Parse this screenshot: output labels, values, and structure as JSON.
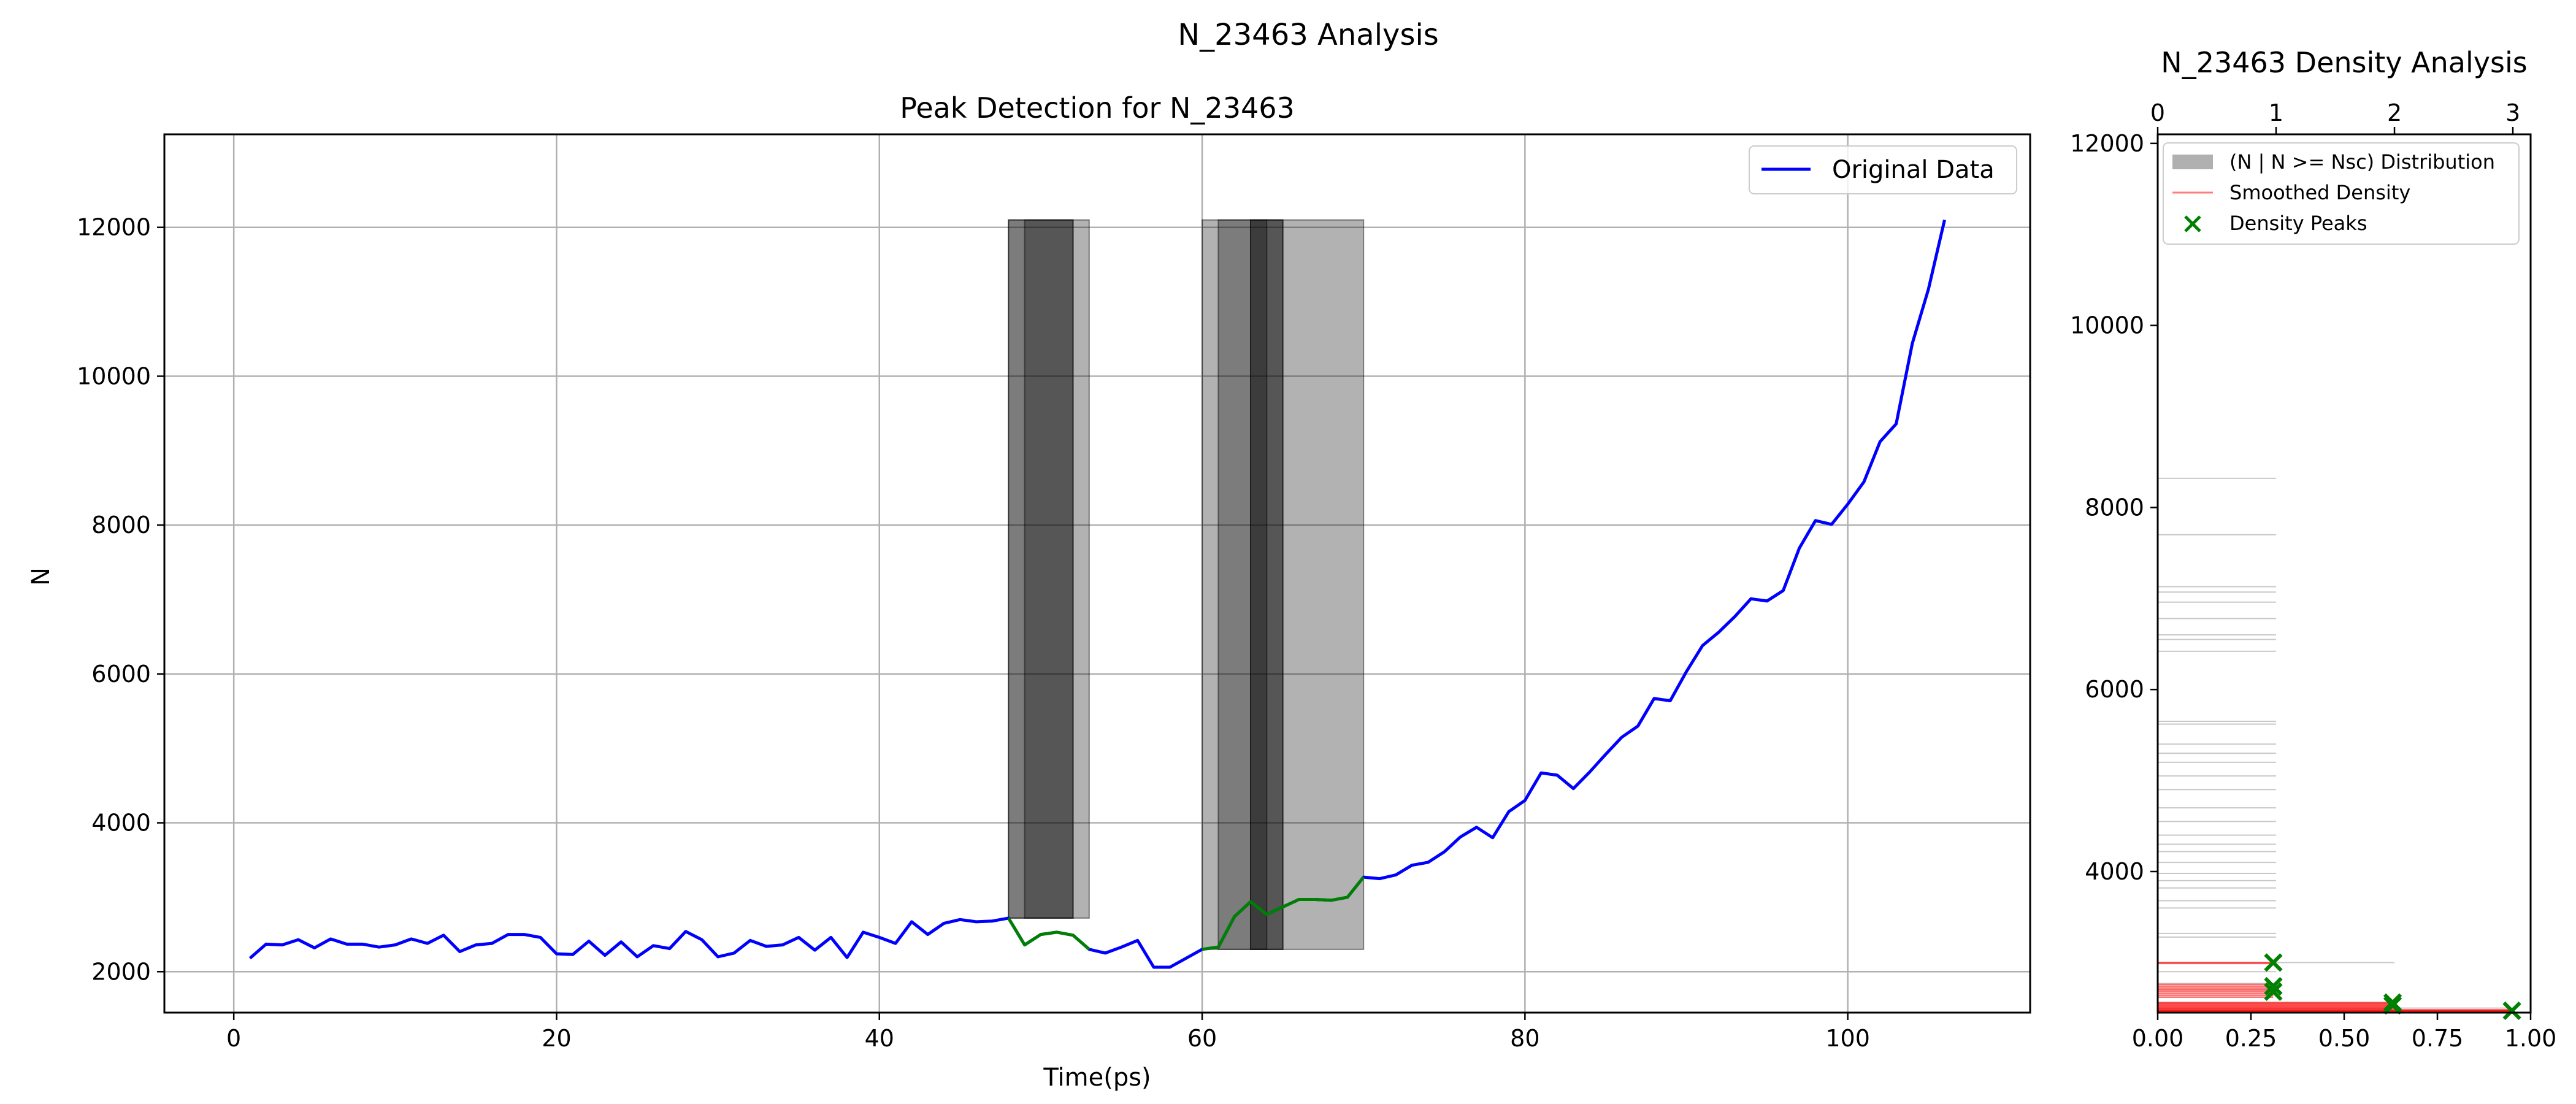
{
  "figure": {
    "suptitle": "N_23463 Analysis"
  },
  "chart_data": [
    {
      "type": "line",
      "title": "Peak Detection for N_23463",
      "xlabel": "Time(ps)",
      "ylabel": "N",
      "xlim": [
        -4.3,
        111.3
      ],
      "ylim": [
        1450,
        13250
      ],
      "xticks": [
        0,
        20,
        40,
        60,
        80,
        100
      ],
      "yticks": [
        2000,
        4000,
        6000,
        8000,
        10000,
        12000
      ],
      "grid": true,
      "legend": {
        "position": "top-right",
        "entries": [
          "Original Data"
        ]
      },
      "series": [
        {
          "name": "Original Data",
          "color": "#0000ff",
          "x": [
            1,
            2,
            3,
            4,
            5,
            6,
            7,
            8,
            9,
            10,
            11,
            12,
            13,
            14,
            15,
            16,
            17,
            18,
            19,
            20,
            21,
            22,
            23,
            24,
            25,
            26,
            27,
            28,
            29,
            30,
            31,
            32,
            33,
            34,
            35,
            36,
            37,
            38,
            39,
            40,
            41,
            42,
            43,
            44,
            45,
            46,
            47,
            48,
            49,
            50,
            51,
            52,
            53,
            54,
            55,
            56,
            57,
            58,
            59,
            60,
            61,
            62,
            63,
            64,
            65,
            66,
            67,
            68,
            69,
            70,
            71,
            72,
            73,
            74,
            75,
            76,
            77,
            78,
            79,
            80,
            81,
            82,
            83,
            84,
            85,
            86,
            87,
            88,
            89,
            90,
            91,
            92,
            93,
            94,
            95,
            96,
            97,
            98,
            99,
            100,
            101,
            102,
            103,
            104,
            105,
            106
          ],
          "y": [
            2180,
            2370,
            2360,
            2430,
            2320,
            2440,
            2370,
            2370,
            2330,
            2360,
            2440,
            2380,
            2490,
            2270,
            2360,
            2380,
            2500,
            2500,
            2460,
            2240,
            2230,
            2410,
            2220,
            2400,
            2200,
            2350,
            2310,
            2540,
            2430,
            2200,
            2250,
            2420,
            2340,
            2360,
            2460,
            2290,
            2460,
            2190,
            2530,
            2460,
            2380,
            2670,
            2500,
            2650,
            2700,
            2670,
            2680,
            2720,
            2360,
            2500,
            2530,
            2490,
            2300,
            2250,
            2330,
            2420,
            2060,
            2060,
            2180,
            2300,
            2330,
            2740,
            2940,
            2770,
            2870,
            2970,
            2970,
            2960,
            3000,
            3270,
            3250,
            3300,
            3430,
            3470,
            3610,
            3810,
            3940,
            3800,
            4150,
            4300,
            4670,
            4640,
            4460,
            4680,
            4920,
            5150,
            5300,
            5670,
            5640,
            6030,
            6380,
            6560,
            6770,
            7010,
            6980,
            7120,
            7690,
            8060,
            8010,
            8280,
            8580,
            9120,
            9360,
            10440,
            11170,
            12100
          ]
        }
      ],
      "highlight_color": "#008000",
      "highlight_ranges": [
        [
          48,
          53
        ],
        [
          60,
          70
        ]
      ],
      "shaded_regions": [
        {
          "x0": 48,
          "x1": 53,
          "y0": 2720,
          "y1": 12100,
          "alpha": 0.3
        },
        {
          "x0": 48,
          "x1": 52,
          "y0": 2720,
          "y1": 12100,
          "alpha": 0.3
        },
        {
          "x0": 49,
          "x1": 52,
          "y0": 2720,
          "y1": 12100,
          "alpha": 0.3
        },
        {
          "x0": 60,
          "x1": 70,
          "y0": 2300,
          "y1": 12100,
          "alpha": 0.3
        },
        {
          "x0": 61,
          "x1": 65,
          "y0": 2300,
          "y1": 12100,
          "alpha": 0.3
        },
        {
          "x0": 63,
          "x1": 65,
          "y0": 2300,
          "y1": 12100,
          "alpha": 0.3
        },
        {
          "x0": 63,
          "x1": 64,
          "y0": 2300,
          "y1": 12100,
          "alpha": 0.3
        }
      ]
    },
    {
      "type": "bar",
      "orientation": "horizontal",
      "title": "N_23463 Density Analysis",
      "xlim": [
        0,
        1.0
      ],
      "ylim": [
        2450,
        12100
      ],
      "xticks": [
        0.0,
        0.25,
        0.5,
        0.75,
        1.0
      ],
      "xtick_labels": [
        "0.00",
        "0.25",
        "0.50",
        "0.75",
        "1.00"
      ],
      "top_xlim": [
        0,
        3.15
      ],
      "top_xticks": [
        0,
        1,
        2,
        3
      ],
      "yticks": [
        4000,
        6000,
        8000,
        10000,
        12000
      ],
      "legend": {
        "position": "top-left",
        "entries": [
          "(N | N >= Nsc) Distribution",
          "Smoothed Density",
          "Density Peaks"
        ]
      },
      "histogram": {
        "name": "(N | N >= Nsc) Distribution",
        "color": "#b0b0b0",
        "y": [
          8320,
          7700,
          7130,
          7070,
          6960,
          6780,
          6600,
          6550,
          6420,
          5650,
          5620,
          5400,
          5300,
          5200,
          5050,
          4900,
          4700,
          4550,
          4400,
          4300,
          4220,
          4100,
          3980,
          3900,
          3820,
          3680,
          3600,
          3320,
          3280,
          3000,
          2900,
          2770,
          2700,
          2560,
          2500
        ],
        "values": [
          1,
          1,
          1,
          1,
          1,
          1,
          1,
          1,
          1,
          1,
          1,
          1,
          1,
          1,
          1,
          1,
          1,
          1,
          1,
          1,
          1,
          1,
          1,
          1,
          1,
          1,
          1,
          1,
          1,
          2,
          1,
          1,
          1,
          2,
          3
        ]
      },
      "smoothed_density": {
        "name": "Smoothed Density",
        "color": "#ff0000",
        "y": [
          3000,
          2990,
          2760,
          2740,
          2720,
          2700,
          2680,
          2660,
          2640,
          2620,
          2560,
          2550,
          2540,
          2530,
          2520,
          2510,
          2500,
          2490,
          2480,
          2475,
          2470,
          2465,
          2460
        ],
        "values": [
          0.31,
          0.31,
          0.31,
          0.31,
          0.31,
          0.31,
          0.31,
          0.31,
          0.31,
          0.31,
          0.63,
          0.63,
          0.63,
          0.63,
          0.63,
          0.63,
          0.63,
          0.63,
          0.95,
          0.95,
          0.95,
          0.95,
          0.95
        ]
      },
      "density_peaks": {
        "name": "Density Peaks",
        "color": "#008000",
        "x": [
          0.31,
          0.31,
          0.31,
          0.63,
          0.63,
          0.95
        ],
        "y": [
          3000,
          2740,
          2680,
          2560,
          2530,
          2470
        ]
      }
    }
  ]
}
